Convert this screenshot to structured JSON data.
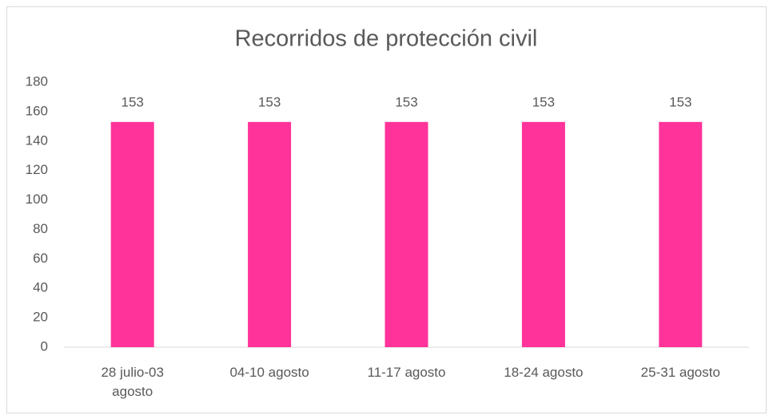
{
  "chart_data": {
    "type": "bar",
    "title": "Recorridos de protección civil",
    "categories": [
      "28 julio-03 agosto",
      "04-10 agosto",
      "11-17 agosto",
      "18-24 agosto",
      "25-31 agosto"
    ],
    "values": [
      153,
      153,
      153,
      153,
      153
    ],
    "color": "#ff3399",
    "ylim": [
      0,
      180
    ],
    "yticks": [
      0,
      20,
      40,
      60,
      80,
      100,
      120,
      140,
      160,
      180
    ],
    "grid": false
  }
}
